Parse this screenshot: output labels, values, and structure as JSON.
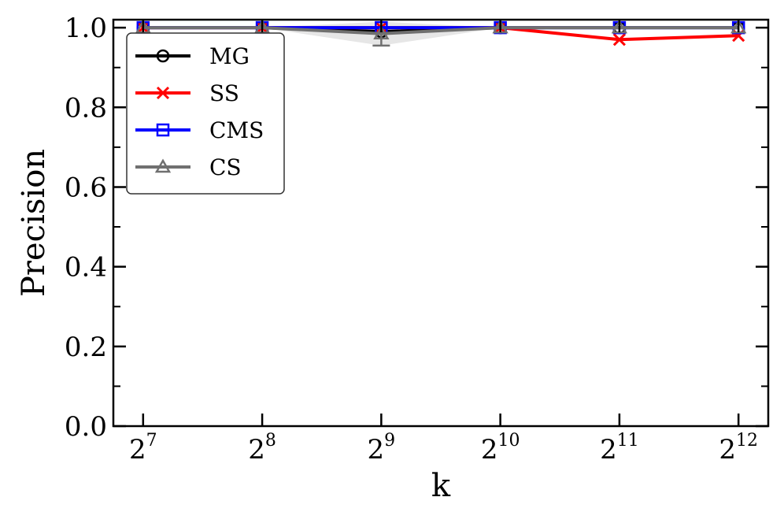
{
  "chart_data": {
    "type": "line",
    "xlabel": "k",
    "ylabel": "Precision",
    "x": [
      128,
      256,
      512,
      1024,
      2048,
      4096
    ],
    "x_scale": "log2",
    "x_tick_labels": [
      {
        "base": "2",
        "exp": "7"
      },
      {
        "base": "2",
        "exp": "8"
      },
      {
        "base": "2",
        "exp": "9"
      },
      {
        "base": "2",
        "exp": "10"
      },
      {
        "base": "2",
        "exp": "11"
      },
      {
        "base": "2",
        "exp": "12"
      }
    ],
    "y_ticks": [
      "0.0",
      "0.2",
      "0.4",
      "0.6",
      "0.8",
      "1.0"
    ],
    "ylim": [
      0,
      1.02
    ],
    "grid": false,
    "legend_position": "upper-left",
    "series": [
      {
        "name": "MG",
        "color": "#000000",
        "marker": "circle",
        "values": [
          1.0,
          1.0,
          0.99,
          1.0,
          1.0,
          1.0
        ]
      },
      {
        "name": "SS",
        "color": "#ff0000",
        "marker": "x",
        "values": [
          1.0,
          1.0,
          1.0,
          1.0,
          0.97,
          0.98
        ]
      },
      {
        "name": "CMS",
        "color": "#0000ff",
        "marker": "square",
        "values": [
          1.0,
          1.0,
          1.0,
          1.0,
          1.0,
          1.0
        ]
      },
      {
        "name": "CS",
        "color": "#707070",
        "marker": "triangle",
        "values": [
          1.0,
          1.0,
          0.985,
          1.0,
          1.0,
          1.0
        ],
        "error": [
          0.0,
          0.0,
          0.03,
          0.0,
          0.0,
          0.0
        ],
        "band_color": "#e6e6e6"
      }
    ]
  }
}
